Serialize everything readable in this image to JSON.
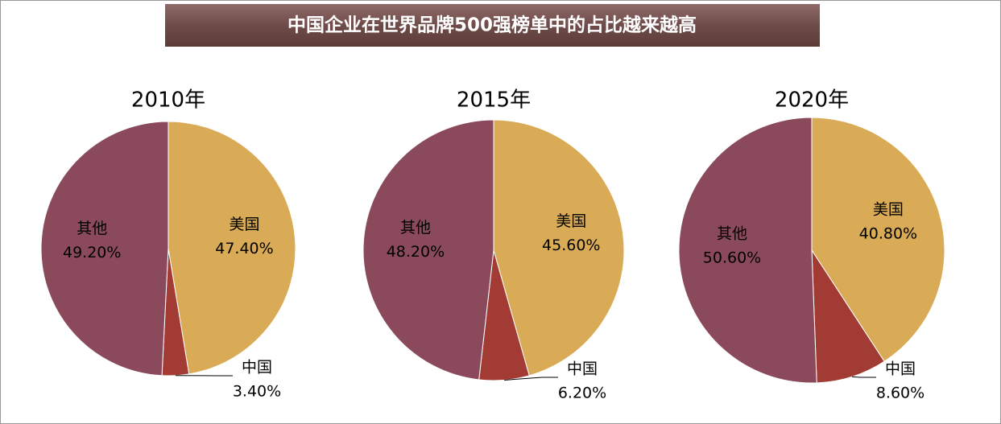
{
  "title": "中国企业在世界品牌500强榜单中的占比越来越高",
  "chart_data": [
    {
      "type": "pie",
      "title": "2010年",
      "categories": [
        "美国",
        "中国",
        "其他"
      ],
      "values": [
        47.4,
        3.4,
        49.2
      ],
      "value_labels": [
        "47.40%",
        "3.40%",
        "49.20%"
      ],
      "colors": [
        "#d9ab56",
        "#a23b33",
        "#8b4a5b"
      ]
    },
    {
      "type": "pie",
      "title": "2015年",
      "categories": [
        "美国",
        "中国",
        "其他"
      ],
      "values": [
        45.6,
        6.2,
        48.2
      ],
      "value_labels": [
        "45.60%",
        "6.20%",
        "48.20%"
      ],
      "colors": [
        "#d9ab56",
        "#a23b33",
        "#8b4a5b"
      ]
    },
    {
      "type": "pie",
      "title": "2020年",
      "categories": [
        "美国",
        "中国",
        "其他"
      ],
      "values": [
        40.8,
        8.6,
        50.6
      ],
      "value_labels": [
        "40.80%",
        "8.60%",
        "50.60%"
      ],
      "colors": [
        "#d9ab56",
        "#a23b33",
        "#8b4a5b"
      ]
    }
  ]
}
